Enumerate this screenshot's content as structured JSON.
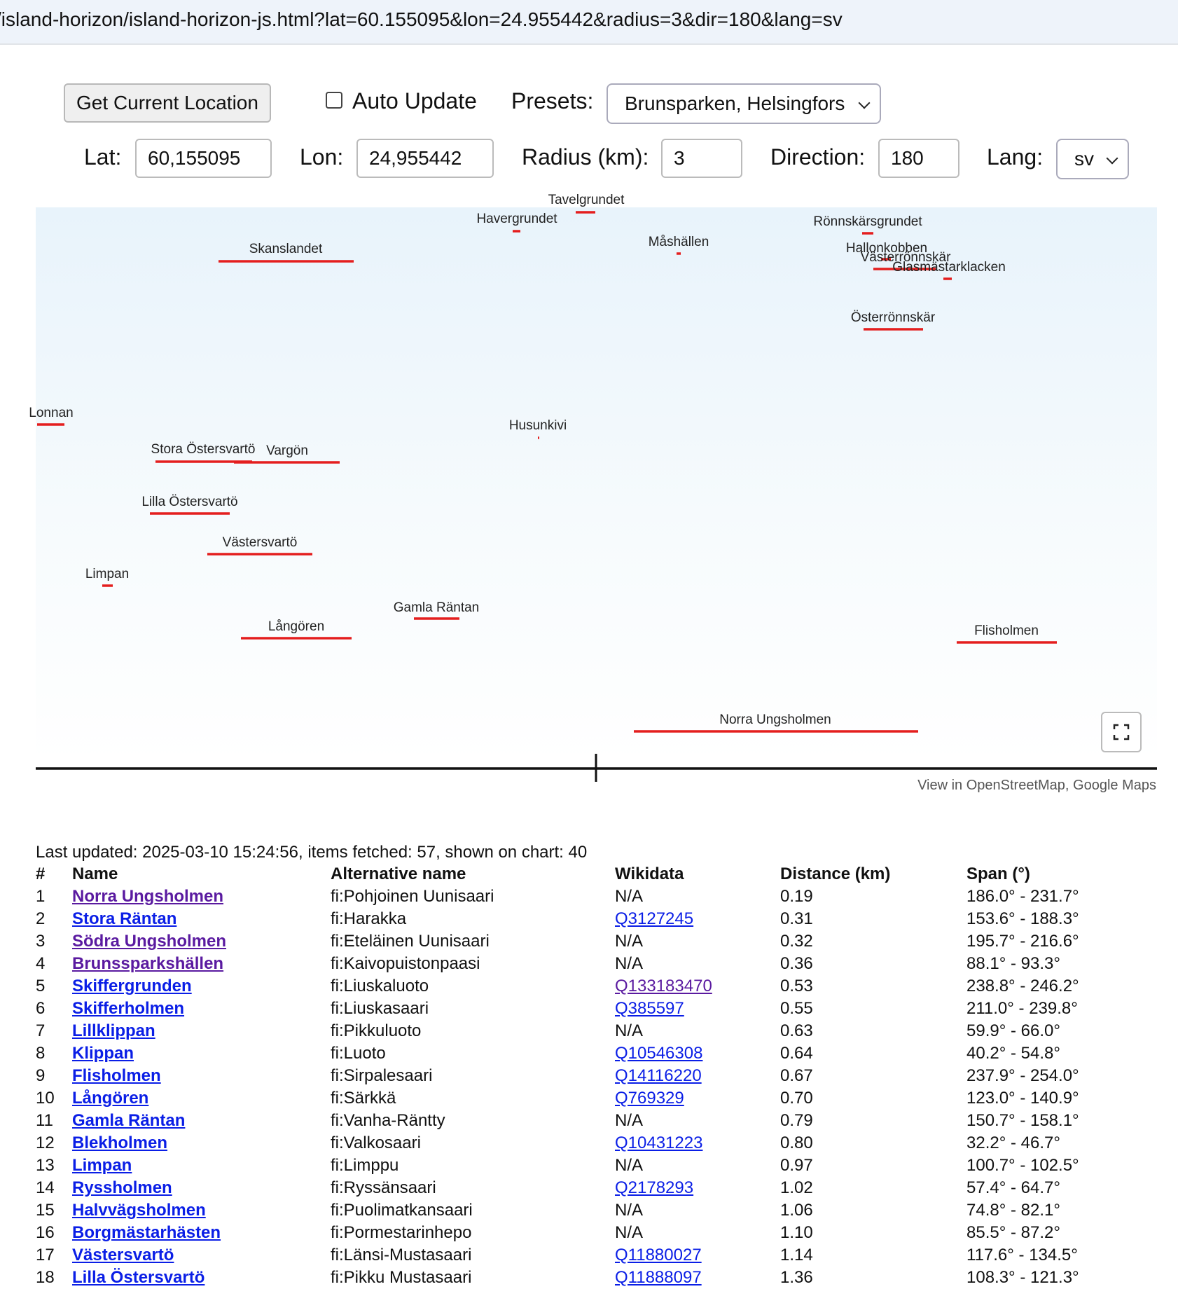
{
  "browser": {
    "url": "/island-horizon/island-horizon-js.html?lat=60.155095&lon=24.955442&radius=3&dir=180&lang=sv"
  },
  "controls": {
    "get_location_label": "Get Current Location",
    "auto_update_label": "Auto Update",
    "auto_update_checked": false,
    "presets_label": "Presets:",
    "presets_value": "Brunsparken, Helsingfors",
    "lat_label": "Lat:",
    "lat_value": "60,155095",
    "lon_label": "Lon:",
    "lon_value": "24,955442",
    "radius_label": "Radius (km):",
    "radius_value": "3",
    "direction_label": "Direction:",
    "direction_value": "180",
    "lang_label": "Lang:",
    "lang_value": "sv"
  },
  "chart_data": {
    "type": "horizon",
    "colors": {
      "segment": "#e41e1e",
      "horizon_line": "#111111",
      "sky_top": "#e8f3fb",
      "sky_bottom": "#ffffff"
    },
    "islands": [
      {
        "name": "Tavelgrundet"
      },
      {
        "name": "Havergrundet"
      },
      {
        "name": "Skanslandet"
      },
      {
        "name": "Måshällen"
      },
      {
        "name": "Rönnskärsgrundet"
      },
      {
        "name": "Hallonkobben"
      },
      {
        "name": "Västerrönnskär"
      },
      {
        "name": "Glasmästarklacken"
      },
      {
        "name": "Österrönnskär"
      },
      {
        "name": "Lonnan"
      },
      {
        "name": "Husunkivi"
      },
      {
        "name": "Stora Östersvartö"
      },
      {
        "name": "Vargön"
      },
      {
        "name": "Lilla Östersvartö"
      },
      {
        "name": "Västersvartö"
      },
      {
        "name": "Limpan"
      },
      {
        "name": "Gamla Räntan"
      },
      {
        "name": "Långören"
      },
      {
        "name": "Flisholmen"
      },
      {
        "name": "Norra Ungsholmen"
      }
    ]
  },
  "map_links": "View in OpenStreetMap, Google Maps",
  "status": {
    "last_updated": "Last updated: 2025-03-10 15:24:56, items fetched: 57, shown on chart: 40"
  },
  "table": {
    "headers": [
      "#",
      "Name",
      "Alternative name",
      "Wikidata",
      "Distance (km)",
      "Span (°)"
    ],
    "rows": [
      {
        "num": "1",
        "name": "Norra Ungsholmen",
        "alt": "fi:Pohjoinen Uunisaari",
        "wikidata": "N/A",
        "distance": "0.19",
        "span": "186.0° - 231.7°",
        "visited": true
      },
      {
        "num": "2",
        "name": "Stora Räntan",
        "alt": "fi:Harakka",
        "wikidata": "Q3127245",
        "distance": "0.31",
        "span": "153.6° - 188.3°",
        "visited": false
      },
      {
        "num": "3",
        "name": "Södra Ungsholmen",
        "alt": "fi:Eteläinen Uunisaari",
        "wikidata": "N/A",
        "distance": "0.32",
        "span": "195.7° - 216.6°",
        "visited": true
      },
      {
        "num": "4",
        "name": "Brunssparkshällen",
        "alt": "fi:Kaivopuistonpaasi",
        "wikidata": "N/A",
        "distance": "0.36",
        "span": "88.1° - 93.3°",
        "visited": true
      },
      {
        "num": "5",
        "name": "Skiffergrunden",
        "alt": "fi:Liuskaluoto",
        "wikidata": "Q133183470",
        "distance": "0.53",
        "span": "238.8° - 246.2°",
        "visited": false,
        "wikidata_visited": true
      },
      {
        "num": "6",
        "name": "Skifferholmen",
        "alt": "fi:Liuskasaari",
        "wikidata": "Q385597",
        "distance": "0.55",
        "span": "211.0° - 239.8°",
        "visited": false
      },
      {
        "num": "7",
        "name": "Lillklippan",
        "alt": "fi:Pikkuluoto",
        "wikidata": "N/A",
        "distance": "0.63",
        "span": "59.9° - 66.0°",
        "visited": false
      },
      {
        "num": "8",
        "name": "Klippan",
        "alt": "fi:Luoto",
        "wikidata": "Q10546308",
        "distance": "0.64",
        "span": "40.2° - 54.8°",
        "visited": false
      },
      {
        "num": "9",
        "name": "Flisholmen",
        "alt": "fi:Sirpalesaari",
        "wikidata": "Q14116220",
        "distance": "0.67",
        "span": "237.9° - 254.0°",
        "visited": false
      },
      {
        "num": "10",
        "name": "Långören",
        "alt": "fi:Särkkä",
        "wikidata": "Q769329",
        "distance": "0.70",
        "span": "123.0° - 140.9°",
        "visited": false
      },
      {
        "num": "11",
        "name": "Gamla Räntan",
        "alt": "fi:Vanha-Ränttу",
        "wikidata": "N/A",
        "distance": "0.79",
        "span": "150.7° - 158.1°",
        "visited": false
      },
      {
        "num": "12",
        "name": "Blekholmen",
        "alt": "fi:Valkosaari",
        "wikidata": "Q10431223",
        "distance": "0.80",
        "span": "32.2° - 46.7°",
        "visited": false
      },
      {
        "num": "13",
        "name": "Limpan",
        "alt": "fi:Limppu",
        "wikidata": "N/A",
        "distance": "0.97",
        "span": "100.7° - 102.5°",
        "visited": false
      },
      {
        "num": "14",
        "name": "Ryssholmen",
        "alt": "fi:Ryssänsaari",
        "wikidata": "Q2178293",
        "distance": "1.02",
        "span": "57.4° - 64.7°",
        "visited": false
      },
      {
        "num": "15",
        "name": "Halvvägsholmen",
        "alt": "fi:Puolimatkansaari",
        "wikidata": "N/A",
        "distance": "1.06",
        "span": "74.8° - 82.1°",
        "visited": false
      },
      {
        "num": "16",
        "name": "Borgmästarhästen",
        "alt": "fi:Pormestarinhepo",
        "wikidata": "N/A",
        "distance": "1.10",
        "span": "85.5° - 87.2°",
        "visited": false
      },
      {
        "num": "17",
        "name": "Västersvartö",
        "alt": "fi:Länsi-Mustasaari",
        "wikidata": "Q11880027",
        "distance": "1.14",
        "span": "117.6° - 134.5°",
        "visited": false
      },
      {
        "num": "18",
        "name": "Lilla Östersvartö",
        "alt": "fi:Pikku Mustasaari",
        "wikidata": "Q11888097",
        "distance": "1.36",
        "span": "108.3° - 121.3°",
        "visited": false
      }
    ]
  }
}
